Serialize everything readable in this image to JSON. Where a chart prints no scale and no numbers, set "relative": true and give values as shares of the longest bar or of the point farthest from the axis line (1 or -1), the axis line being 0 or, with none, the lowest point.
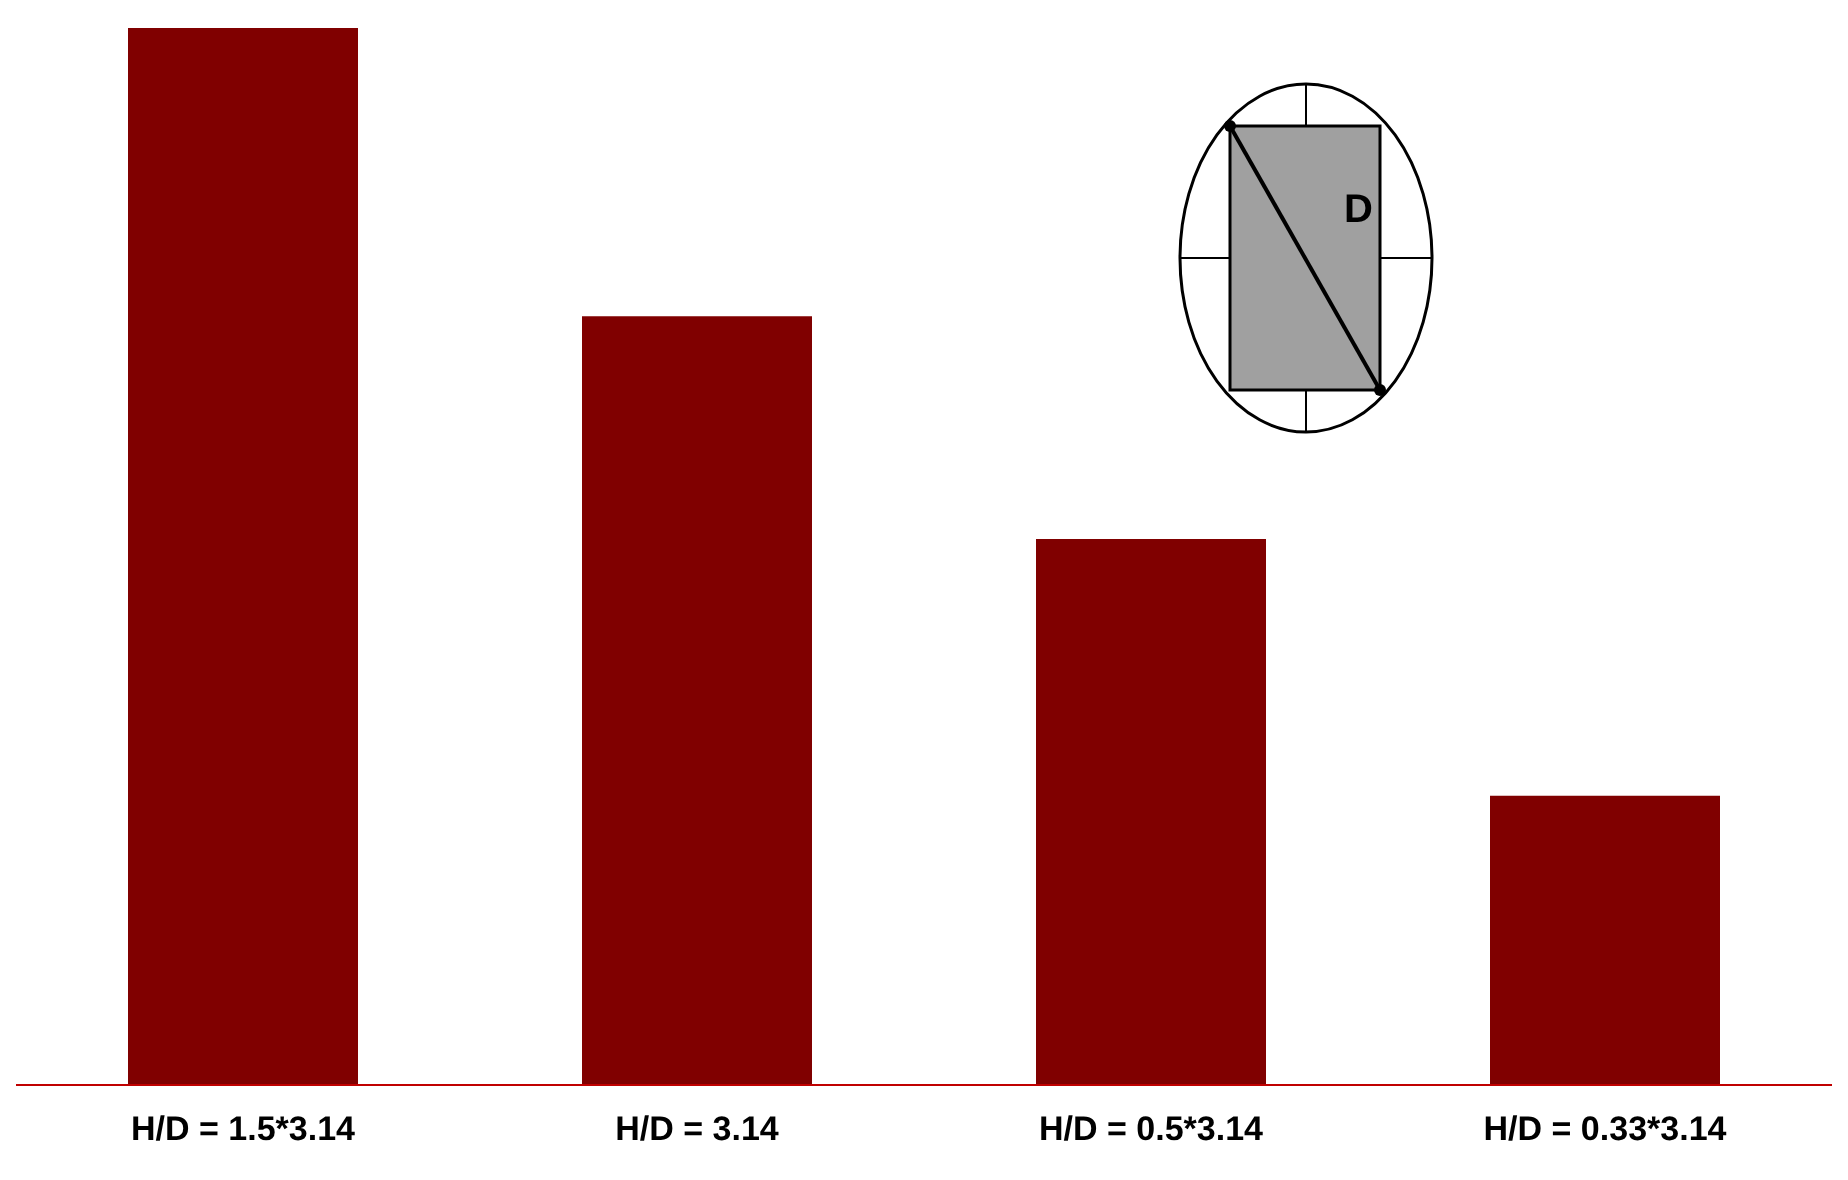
{
  "chart_data": {
    "type": "bar",
    "relative": true,
    "categories": [
      "H/D = 1.5*3.14",
      "H/D = 3.14",
      "H/D = 0.5*3.14",
      "H/D = 0.33*3.14"
    ],
    "values": [
      1,
      0.727,
      0.516,
      0.273
    ],
    "color": "#800000",
    "annotations": [
      "D"
    ]
  }
}
